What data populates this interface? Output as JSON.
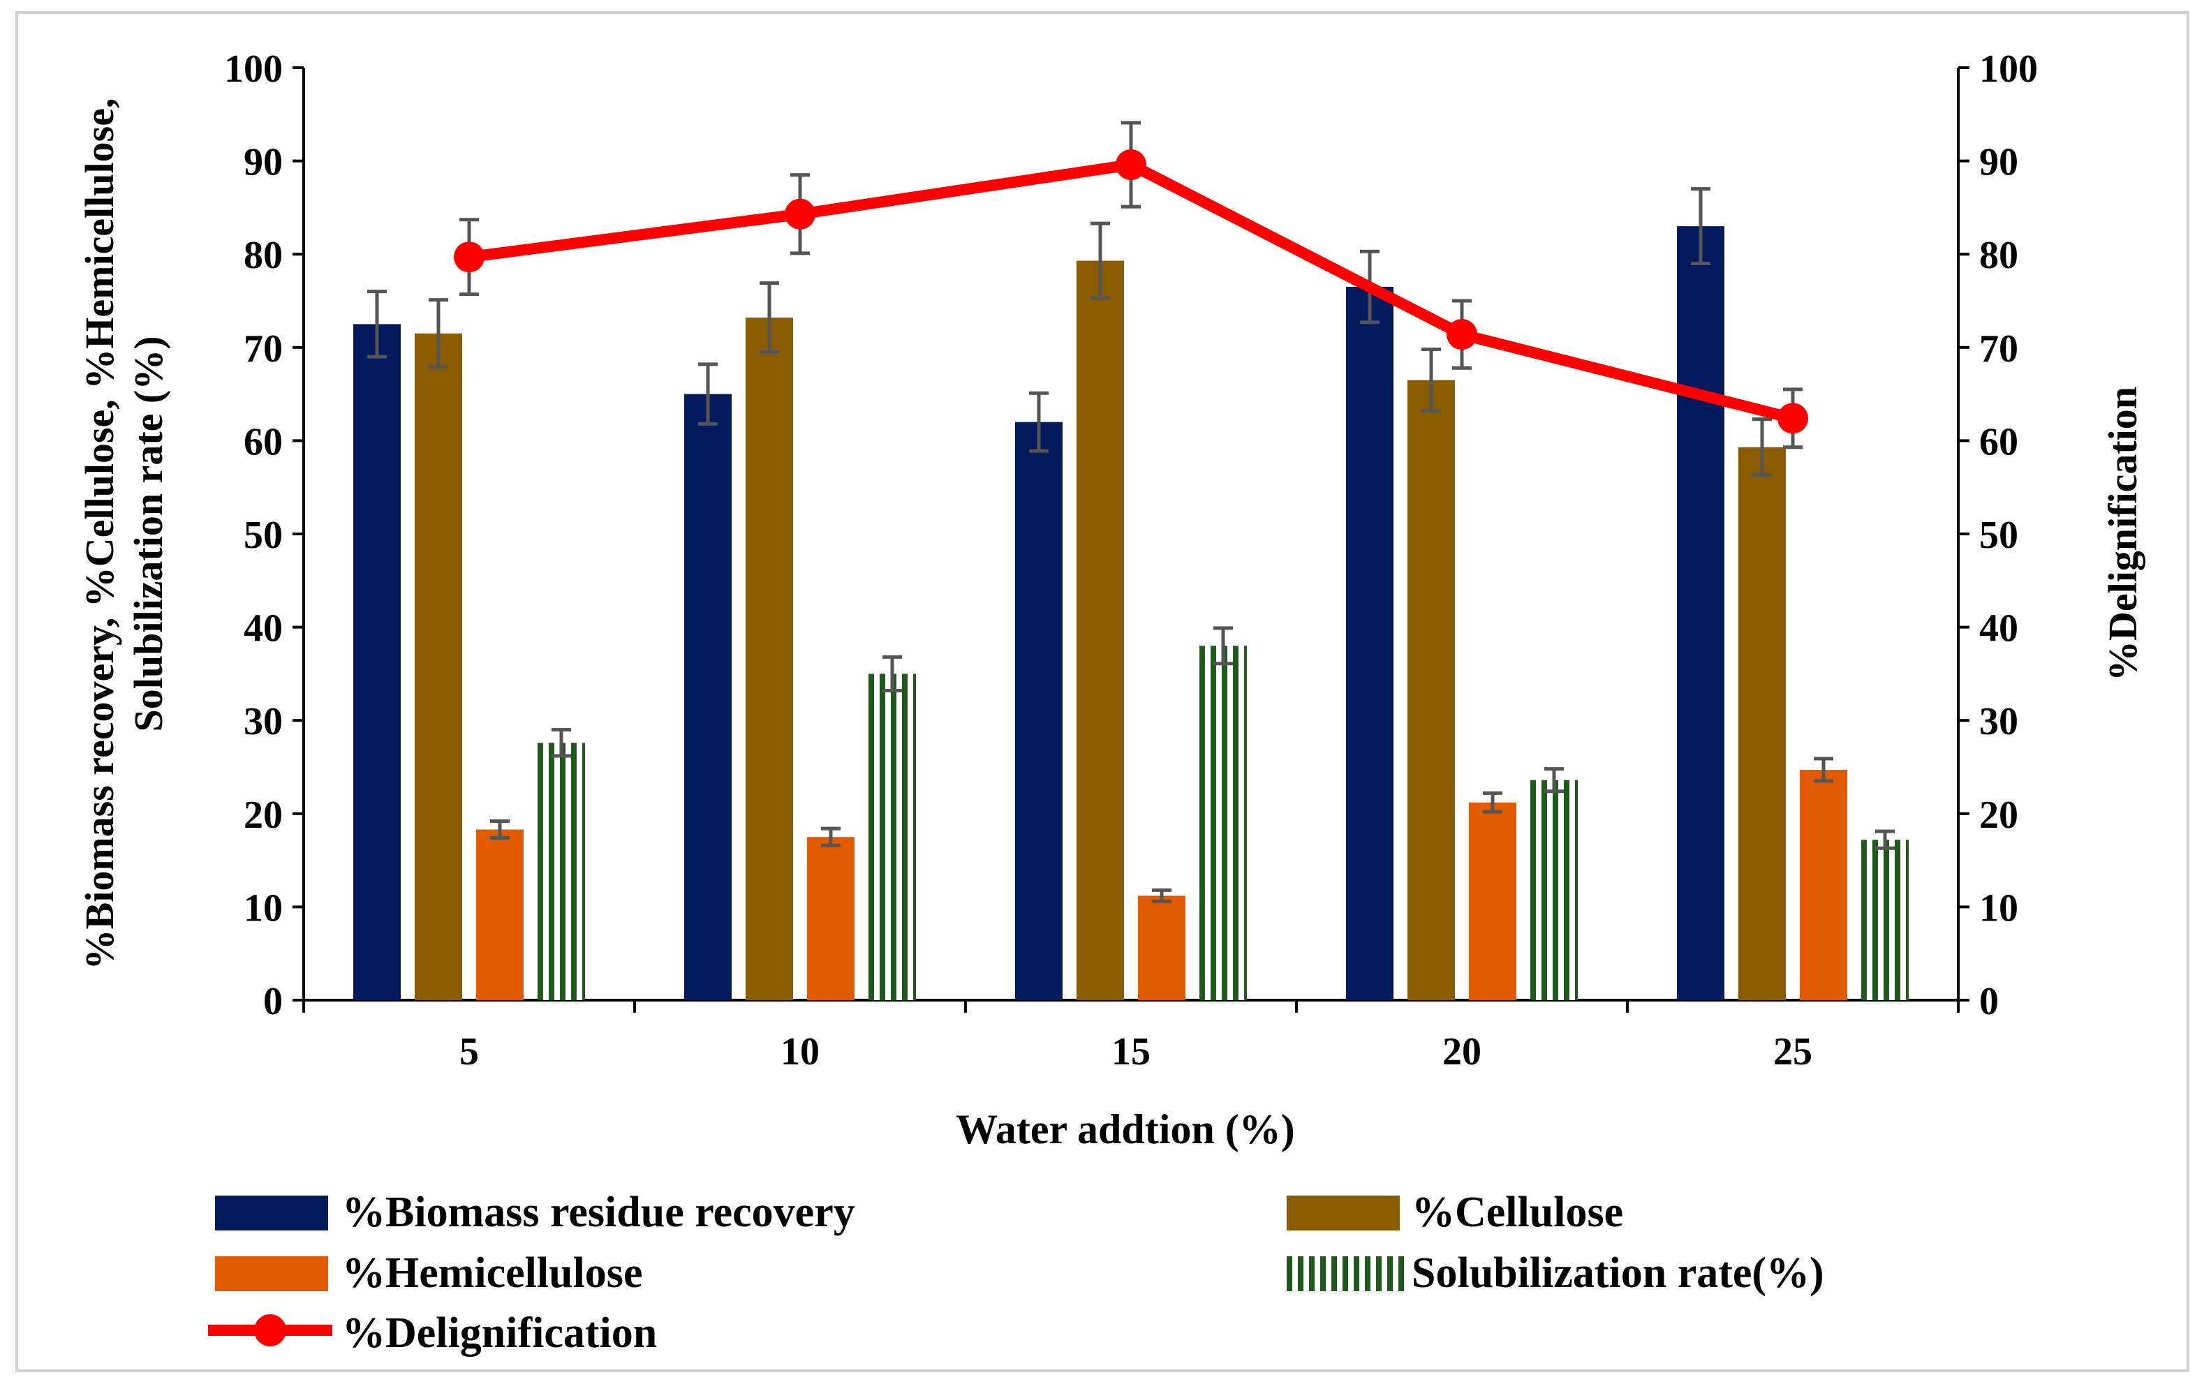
{
  "chart_data": {
    "type": "bar",
    "xlabel": "Water addtion (%)",
    "ylabel_left_line1": "%Biomass recovery, %Cellulose, %Hemicellulose,",
    "ylabel_left_line2": "Solubilization rate (%)",
    "ylabel_right": "%Delignification",
    "ylim": [
      0,
      100
    ],
    "y2lim": [
      0,
      100
    ],
    "yticks": [
      "0",
      "10",
      "20",
      "30",
      "40",
      "50",
      "60",
      "70",
      "80",
      "90",
      "100"
    ],
    "categories": [
      "5",
      "10",
      "15",
      "20",
      "25"
    ],
    "series": [
      {
        "name": "%Biomass residue recovery",
        "kind": "bar",
        "color": "#041a5c",
        "values": [
          72.5,
          65,
          62,
          76.5,
          83
        ],
        "errors": [
          3.5,
          3.2,
          3.1,
          3.8,
          4
        ]
      },
      {
        "name": "%Cellulose",
        "kind": "bar",
        "color": "#8a5c00",
        "values": [
          71.5,
          73.2,
          79.3,
          66.5,
          59.3
        ],
        "errors": [
          3.6,
          3.7,
          4,
          3.3,
          3
        ]
      },
      {
        "name": "%Hemicellulose",
        "kind": "bar",
        "color": "#e15c00",
        "values": [
          18.3,
          17.5,
          11.2,
          21.2,
          24.7
        ],
        "errors": [
          0.9,
          0.9,
          0.6,
          1,
          1.2
        ]
      },
      {
        "name": "Solubilization rate(%)",
        "kind": "bar-striped",
        "color": "#1f5a1a",
        "values": [
          27.6,
          35,
          38,
          23.6,
          17.2
        ],
        "errors": [
          1.4,
          1.8,
          1.9,
          1.2,
          0.9
        ]
      },
      {
        "name": "%Delignification",
        "kind": "line",
        "axis": "right",
        "color": "#ff0000",
        "values": [
          79.7,
          84.3,
          89.6,
          71.4,
          62.4
        ],
        "errors": [
          4,
          4.2,
          4.5,
          3.6,
          3.1
        ]
      }
    ]
  }
}
